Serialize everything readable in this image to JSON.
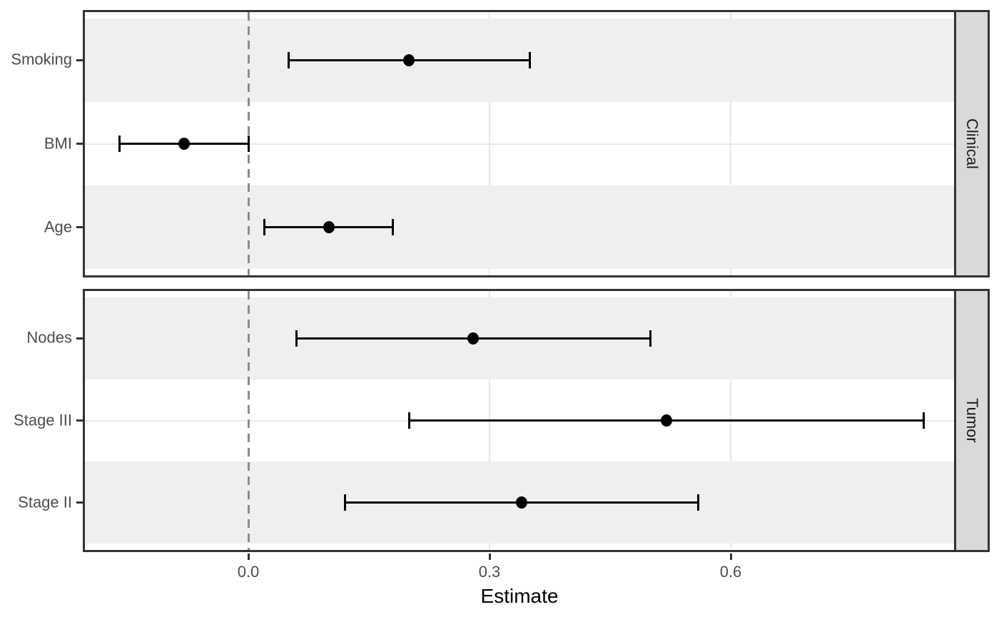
{
  "chart_data": {
    "type": "forest",
    "title": "",
    "xlabel": "Estimate",
    "ylabel": "",
    "legend": "none",
    "grid": "major",
    "xlim": [
      -0.21,
      0.88
    ],
    "reference_line": 0.0,
    "x_ticks": [
      {
        "value": 0.0,
        "label": "0.0"
      },
      {
        "value": 0.3,
        "label": "0.3"
      },
      {
        "value": 0.6,
        "label": "0.6"
      }
    ],
    "facet_side": "right",
    "panels": [
      {
        "facet": "Clinical",
        "rows": [
          {
            "label": "Smoking",
            "estimate": 0.2,
            "ci_low": 0.05,
            "ci_high": 0.35
          },
          {
            "label": "BMI",
            "estimate": -0.08,
            "ci_low": -0.16,
            "ci_high": 0.0
          },
          {
            "label": "Age",
            "estimate": 0.1,
            "ci_low": 0.02,
            "ci_high": 0.18
          }
        ]
      },
      {
        "facet": "Tumor",
        "rows": [
          {
            "label": "Nodes",
            "estimate": 0.28,
            "ci_low": 0.06,
            "ci_high": 0.5
          },
          {
            "label": "Stage III",
            "estimate": 0.52,
            "ci_low": 0.2,
            "ci_high": 0.84
          },
          {
            "label": "Stage II",
            "estimate": 0.34,
            "ci_low": 0.12,
            "ci_high": 0.56
          }
        ]
      }
    ],
    "colors": {
      "point": "#000000",
      "ci": "#000000",
      "reference_line": "#8C8C8C",
      "row_stripe": "#EFEFEF",
      "gridline": "#E8E8E8",
      "panel_border": "#333333",
      "strip_background": "#D9D9D9",
      "strip_text": "#1A1A1A",
      "axis_text": "#4D4D4D"
    }
  }
}
